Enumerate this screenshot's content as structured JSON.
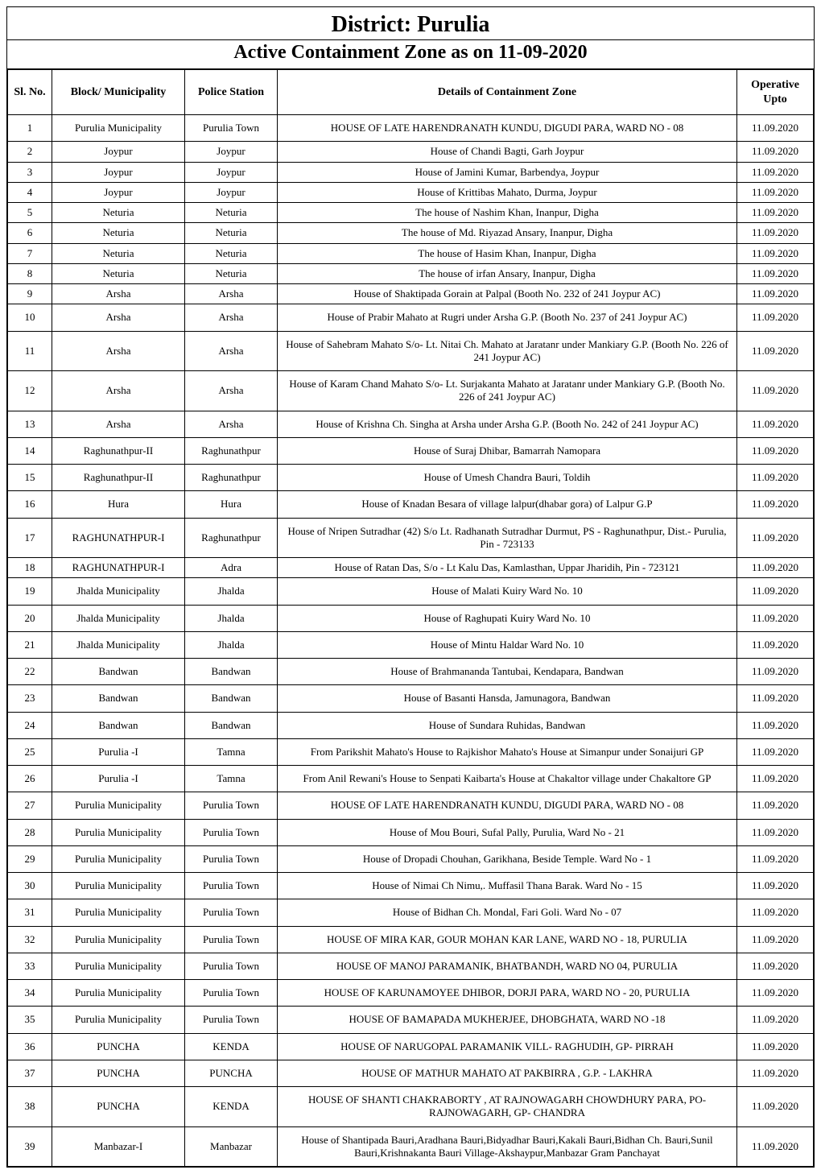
{
  "title": "District: Purulia",
  "subtitle": "Active Containment Zone as on 11-09-2020",
  "columns": {
    "sl": "Sl. No.",
    "block": "Block/ Municipality",
    "police": "Police Station",
    "details": "Details of Containment Zone",
    "op": "Operative Upto"
  },
  "rows": [
    {
      "sl": "1",
      "block": "Purulia Municipality",
      "police": "Purulia Town",
      "details": "HOUSE OF LATE HARENDRANATH KUNDU, DIGUDI PARA, WARD NO - 08",
      "op": "11.09.2020",
      "tall": true
    },
    {
      "sl": "2",
      "block": "Joypur",
      "police": "Joypur",
      "details": "House of Chandi Bagti, Garh Joypur",
      "op": "11.09.2020"
    },
    {
      "sl": "3",
      "block": "Joypur",
      "police": "Joypur",
      "details": "House of Jamini Kumar, Barbendya, Joypur",
      "op": "11.09.2020"
    },
    {
      "sl": "4",
      "block": "Joypur",
      "police": "Joypur",
      "details": "House of Krittibas Mahato, Durma, Joypur",
      "op": "11.09.2020"
    },
    {
      "sl": "5",
      "block": "Neturia",
      "police": "Neturia",
      "details": "The house of Nashim Khan, Inanpur, Digha",
      "op": "11.09.2020"
    },
    {
      "sl": "6",
      "block": "Neturia",
      "police": "Neturia",
      "details": "The house of Md. Riyazad Ansary, Inanpur, Digha",
      "op": "11.09.2020"
    },
    {
      "sl": "7",
      "block": "Neturia",
      "police": "Neturia",
      "details": "The house of Hasim Khan, Inanpur, Digha",
      "op": "11.09.2020"
    },
    {
      "sl": "8",
      "block": "Neturia",
      "police": "Neturia",
      "details": "The house of irfan Ansary, Inanpur, Digha",
      "op": "11.09.2020"
    },
    {
      "sl": "9",
      "block": "Arsha",
      "police": "Arsha",
      "details": "House of Shaktipada Gorain at Palpal  (Booth No. 232 of 241 Joypur AC)",
      "op": "11.09.2020"
    },
    {
      "sl": "10",
      "block": "Arsha",
      "police": "Arsha",
      "details": "House of  Prabir Mahato at Rugri under Arsha G.P.\n(Booth No. 237 of 241 Joypur AC)",
      "op": "11.09.2020",
      "tall": true
    },
    {
      "sl": "11",
      "block": "Arsha",
      "police": "Arsha",
      "details": "House of Sahebram Mahato S/o- Lt. Nitai Ch. Mahato at Jaratanr under Mankiary G.P.  (Booth No. 226 of 241 Joypur AC)",
      "op": "11.09.2020",
      "tall": true
    },
    {
      "sl": "12",
      "block": "Arsha",
      "police": "Arsha",
      "details": "House of Karam Chand Mahato S/o- Lt. Surjakanta Mahato at Jaratanr under Mankiary G.P.  (Booth No. 226 of 241 Joypur AC)",
      "op": "11.09.2020",
      "tall": true
    },
    {
      "sl": "13",
      "block": "Arsha",
      "police": "Arsha",
      "details": "House of Krishna Ch. Singha at Arsha under Arsha G.P.\n(Booth No. 242 of 241 Joypur AC)",
      "op": "11.09.2020",
      "tall": true
    },
    {
      "sl": "14",
      "block": "Raghunathpur-II",
      "police": "Raghunathpur",
      "details": "House of Suraj Dhibar,  Bamarrah Namopara",
      "op": "11.09.2020",
      "tall": true
    },
    {
      "sl": "15",
      "block": "Raghunathpur-II",
      "police": "Raghunathpur",
      "details": "House of Umesh Chandra Bauri, Toldih",
      "op": "11.09.2020",
      "tall": true
    },
    {
      "sl": "16",
      "block": "Hura",
      "police": "Hura",
      "details": "House of Knadan Besara of village  lalpur(dhabar gora) of Lalpur  G.P",
      "op": "11.09.2020",
      "tall": true
    },
    {
      "sl": "17",
      "block": "RAGHUNATHPUR-I",
      "police": "Raghunathpur",
      "details": "House of Nripen Sutradhar (42) S/o Lt. Radhanath Sutradhar  Durmut, PS - Raghunathpur, Dist.- Purulia,  Pin - 723133",
      "op": "11.09.2020",
      "tall": true
    },
    {
      "sl": "18",
      "block": "RAGHUNATHPUR-I",
      "police": "Adra",
      "details": "House of Ratan Das, S/o - Lt Kalu Das, Kamlasthan, Uppar Jharidih, Pin - 723121",
      "op": "11.09.2020"
    },
    {
      "sl": "19",
      "block": "Jhalda Municipality",
      "police": "Jhalda",
      "details": "House of Malati Kuiry Ward No. 10",
      "op": "11.09.2020",
      "tall": true
    },
    {
      "sl": "20",
      "block": "Jhalda Municipality",
      "police": "Jhalda",
      "details": "House of  Raghupati Kuiry Ward No. 10",
      "op": "11.09.2020",
      "tall": true
    },
    {
      "sl": "21",
      "block": "Jhalda Municipality",
      "police": "Jhalda",
      "details": "House of Mintu Haldar Ward No. 10",
      "op": "11.09.2020",
      "tall": true
    },
    {
      "sl": "22",
      "block": "Bandwan",
      "police": "Bandwan",
      "details": "House of Brahmananda Tantubai, Kendapara, Bandwan",
      "op": "11.09.2020",
      "tall": true
    },
    {
      "sl": "23",
      "block": "Bandwan",
      "police": "Bandwan",
      "details": "House of Basanti Hansda, Jamunagora, Bandwan",
      "op": "11.09.2020",
      "tall": true
    },
    {
      "sl": "24",
      "block": "Bandwan",
      "police": "Bandwan",
      "details": "House of Sundara Ruhidas, Bandwan",
      "op": "11.09.2020",
      "tall": true
    },
    {
      "sl": "25",
      "block": "Purulia -I",
      "police": "Tamna",
      "details": "From Parikshit Mahato's House to Rajkishor Mahato's House at Simanpur under Sonaijuri GP",
      "op": "11.09.2020",
      "tall": true
    },
    {
      "sl": "26",
      "block": "Purulia -I",
      "police": "Tamna",
      "details": "From Anil Rewani's House to Senpati Kaibarta's  House at Chakaltor village under Chakaltore GP",
      "op": "11.09.2020",
      "tall": true
    },
    {
      "sl": "27",
      "block": "Purulia Municipality",
      "police": "Purulia Town",
      "details": "HOUSE OF LATE HARENDRANATH KUNDU, DIGUDI PARA, WARD NO - 08",
      "op": "11.09.2020",
      "tall": true
    },
    {
      "sl": "28",
      "block": "Purulia Municipality",
      "police": "Purulia Town",
      "details": "House of Mou Bouri, Sufal Pally, Purulia, Ward No - 21",
      "op": "11.09.2020",
      "tall": true
    },
    {
      "sl": "29",
      "block": "Purulia Municipality",
      "police": "Purulia Town",
      "details": "House of Dropadi Chouhan, Garikhana, Beside Temple. Ward No - 1",
      "op": "11.09.2020",
      "tall": true
    },
    {
      "sl": "30",
      "block": "Purulia Municipality",
      "police": "Purulia Town",
      "details": "House of Nimai Ch Nimu,. Muffasil Thana  Barak. Ward No - 15",
      "op": "11.09.2020",
      "tall": true
    },
    {
      "sl": "31",
      "block": "Purulia Municipality",
      "police": "Purulia Town",
      "details": "House of Bidhan Ch. Mondal, Fari Goli. Ward No - 07",
      "op": "11.09.2020",
      "tall": true
    },
    {
      "sl": "32",
      "block": "Purulia Municipality",
      "police": "Purulia Town",
      "details": "HOUSE OF MIRA KAR, GOUR MOHAN KAR LANE, WARD NO - 18, PURULIA",
      "op": "11.09.2020",
      "tall": true
    },
    {
      "sl": "33",
      "block": "Purulia Municipality",
      "police": "Purulia Town",
      "details": "HOUSE OF MANOJ PARAMANIK, BHATBANDH, WARD NO 04, PURULIA",
      "op": "11.09.2020",
      "tall": true
    },
    {
      "sl": "34",
      "block": "Purulia Municipality",
      "police": "Purulia Town",
      "details": "HOUSE OF KARUNAMOYEE DHIBOR, DORJI PARA, WARD NO - 20, PURULIA",
      "op": "11.09.2020",
      "tall": true
    },
    {
      "sl": "35",
      "block": "Purulia Municipality",
      "police": "Purulia Town",
      "details": "HOUSE OF BAMAPADA MUKHERJEE, DHOBGHATA, WARD NO -18",
      "op": "11.09.2020",
      "tall": true
    },
    {
      "sl": "36",
      "block": "PUNCHA",
      "police": "KENDA",
      "details": "HOUSE OF NARUGOPAL PARAMANIK VILL- RAGHUDIH, GP- PIRRAH",
      "op": "11.09.2020",
      "tall": true
    },
    {
      "sl": "37",
      "block": "PUNCHA",
      "police": "PUNCHA",
      "details": "HOUSE OF MATHUR MAHATO AT PAKBIRRA , G.P. - LAKHRA",
      "op": "11.09.2020",
      "tall": true
    },
    {
      "sl": "38",
      "block": "PUNCHA",
      "police": "KENDA",
      "details": "HOUSE OF SHANTI CHAKRABORTY , AT RAJNOWAGARH CHOWDHURY PARA, PO- RAJNOWAGARH, GP- CHANDRA",
      "op": "11.09.2020",
      "tall": true
    },
    {
      "sl": "39",
      "block": "Manbazar-I",
      "police": "Manbazar",
      "details": "House of Shantipada Bauri,Aradhana Bauri,Bidyadhar Bauri,Kakali Bauri,Bidhan Ch. Bauri,Sunil Bauri,Krishnakanta Bauri Village-Akshaypur,Manbazar Gram Panchayat",
      "op": "11.09.2020",
      "tall": true
    }
  ]
}
